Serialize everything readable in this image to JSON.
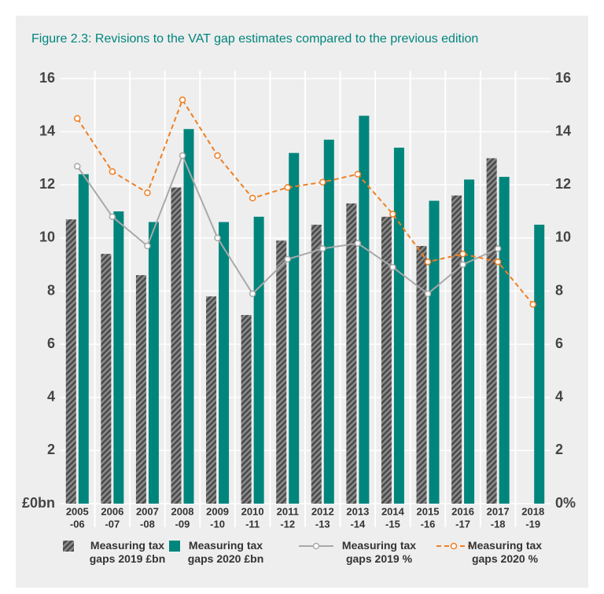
{
  "chart_data": {
    "type": "bar",
    "title": "Figure 2.3: Revisions to the VAT gap estimates compared to the previous edition",
    "categories": [
      [
        "2005",
        "-06"
      ],
      [
        "2006",
        "-07"
      ],
      [
        "2007",
        "-08"
      ],
      [
        "2008",
        "-09"
      ],
      [
        "2009",
        "-10"
      ],
      [
        "2010",
        "-11"
      ],
      [
        "2011",
        "-12"
      ],
      [
        "2012",
        "-13"
      ],
      [
        "2013",
        "-14"
      ],
      [
        "2014",
        "-15"
      ],
      [
        "2015",
        "-16"
      ],
      [
        "2016",
        "-17"
      ],
      [
        "2017",
        "-18"
      ],
      [
        "2018",
        "-19"
      ]
    ],
    "series": [
      {
        "name": "Measuring tax gaps 2019 £bn",
        "type": "bar",
        "color": "#5f5f5f",
        "pattern": "hatch",
        "values": [
          10.7,
          9.4,
          8.6,
          11.9,
          7.8,
          7.1,
          9.9,
          10.5,
          11.3,
          10.8,
          9.7,
          11.6,
          13.0,
          null
        ]
      },
      {
        "name": "Measuring tax gaps 2020 £bn",
        "type": "bar",
        "color": "#00857c",
        "values": [
          12.4,
          11.0,
          10.6,
          14.1,
          10.6,
          10.8,
          13.2,
          13.7,
          14.6,
          13.4,
          11.4,
          12.2,
          12.3,
          10.5
        ]
      },
      {
        "name": "Measuring tax gaps 2019 %",
        "type": "line",
        "axis": "y2",
        "color": "#a9a9a9",
        "values": [
          12.7,
          10.8,
          9.7,
          13.1,
          10.0,
          7.9,
          9.2,
          9.6,
          9.8,
          8.9,
          7.9,
          9.0,
          9.6,
          null
        ]
      },
      {
        "name": "Measuring tax gaps 2020 %",
        "type": "line",
        "axis": "y2",
        "dashed": true,
        "color": "#f07f22",
        "values": [
          14.5,
          12.5,
          11.7,
          15.2,
          13.1,
          11.5,
          11.9,
          12.1,
          12.4,
          10.9,
          9.1,
          9.4,
          9.1,
          7.5
        ]
      }
    ],
    "ylim": [
      0,
      16
    ],
    "yticks": [
      {
        "value": 0,
        "label": "£0bn"
      },
      2,
      4,
      6,
      8,
      10,
      12,
      14,
      16
    ],
    "y2lim": [
      0,
      16
    ],
    "y2ticks": [
      {
        "value": 0,
        "label": "0%"
      },
      2,
      4,
      6,
      8,
      10,
      12,
      14,
      16
    ],
    "grid": true
  }
}
